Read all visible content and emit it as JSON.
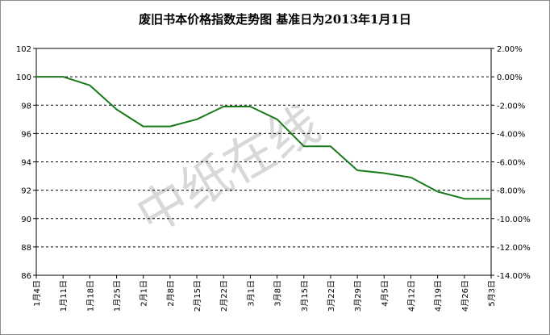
{
  "chart_data": {
    "type": "line",
    "title": "废旧书本价格指数走势图 基准日为2013年1月1日",
    "watermark": "中纸在线",
    "categories": [
      "1月4日",
      "1月11日",
      "1月18日",
      "1月25日",
      "2月1日",
      "2月8日",
      "2月15日",
      "2月22日",
      "3月1日",
      "3月8日",
      "3月15日",
      "3月22日",
      "3月29日",
      "4月5日",
      "4月12日",
      "4月19日",
      "4月26日",
      "5月3日"
    ],
    "series": [
      {
        "values": [
          100.0,
          100.0,
          99.4,
          97.7,
          96.5,
          96.5,
          97.0,
          97.9,
          97.9,
          97.0,
          95.1,
          95.1,
          93.4,
          93.2,
          92.9,
          91.9,
          91.4,
          91.4
        ]
      }
    ],
    "ylim": [
      86,
      102
    ],
    "yticks": [
      "86",
      "88",
      "90",
      "92",
      "94",
      "96",
      "98",
      "100",
      "102"
    ],
    "y2lim": [
      -14,
      2
    ],
    "y2ticks": [
      "-14.00%",
      "-12.00%",
      "-10.00%",
      "-8.00%",
      "-6.00%",
      "-4.00%",
      "-2.00%",
      "0.00%",
      "2.00%"
    ],
    "grid": true,
    "colors": {
      "line": "#1a7a1a",
      "grid": "#000000"
    }
  }
}
